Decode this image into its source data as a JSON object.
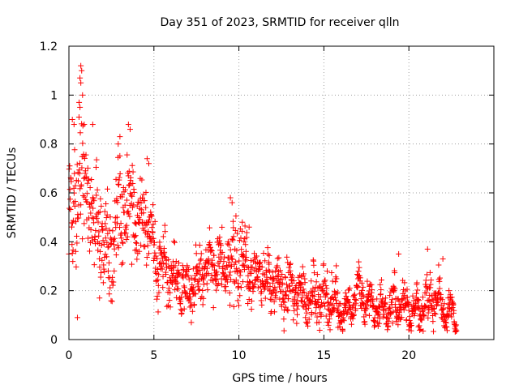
{
  "chart_data": {
    "type": "scatter",
    "title": "Day 351 of 2023, SRMTID for receiver qlln",
    "xlabel": "GPS time / hours",
    "ylabel": "SRMTID / TECUs",
    "xlim": [
      0,
      25
    ],
    "ylim": [
      0,
      1.2
    ],
    "xticks": [
      0,
      5,
      10,
      15,
      20
    ],
    "yticks": [
      0,
      0.2,
      0.4,
      0.6,
      0.8,
      1,
      1.2
    ],
    "xtick_labels": [
      "0",
      "5",
      "10",
      "15",
      "20"
    ],
    "ytick_labels": [
      "0",
      "0.2",
      "0.4",
      "0.6",
      "0.8",
      "1",
      "1.2"
    ],
    "grid": true,
    "marker": "plus",
    "color": "#ff0000",
    "series": [
      {
        "name": "SRMTID",
        "envelope": {
          "x": [
            0,
            0.3,
            0.7,
            1.0,
            1.5,
            2.0,
            2.5,
            3.0,
            3.5,
            4.0,
            4.5,
            5.0,
            5.5,
            6.0,
            6.5,
            7.0,
            7.5,
            8.0,
            8.5,
            9.0,
            9.5,
            10.0,
            10.5,
            11.0,
            11.5,
            12.0,
            13.0,
            14.0,
            15.0,
            15.5,
            16.0,
            16.5,
            17.0,
            17.5,
            18.0,
            18.5,
            19.0,
            19.5,
            20.0,
            20.5,
            21.0,
            21.5,
            22.0,
            22.5,
            22.8
          ],
          "y": [
            0.45,
            0.55,
            0.72,
            0.6,
            0.5,
            0.4,
            0.38,
            0.48,
            0.55,
            0.52,
            0.5,
            0.35,
            0.3,
            0.28,
            0.24,
            0.2,
            0.22,
            0.3,
            0.28,
            0.3,
            0.32,
            0.33,
            0.3,
            0.26,
            0.25,
            0.22,
            0.2,
            0.18,
            0.17,
            0.16,
            0.13,
            0.12,
            0.2,
            0.16,
            0.13,
            0.12,
            0.14,
            0.15,
            0.12,
            0.13,
            0.15,
            0.16,
            0.13,
            0.11,
            0.1
          ],
          "spread": [
            0.18,
            0.2,
            0.22,
            0.18,
            0.16,
            0.14,
            0.15,
            0.16,
            0.17,
            0.16,
            0.15,
            0.12,
            0.1,
            0.09,
            0.08,
            0.08,
            0.08,
            0.09,
            0.09,
            0.1,
            0.12,
            0.12,
            0.1,
            0.09,
            0.09,
            0.08,
            0.08,
            0.08,
            0.08,
            0.07,
            0.06,
            0.05,
            0.06,
            0.06,
            0.05,
            0.05,
            0.06,
            0.06,
            0.05,
            0.06,
            0.07,
            0.07,
            0.05,
            0.05,
            0.04
          ]
        },
        "outliers": [
          {
            "x": 0.7,
            "y": 1.12
          },
          {
            "x": 0.75,
            "y": 1.1
          },
          {
            "x": 0.65,
            "y": 1.07
          },
          {
            "x": 0.7,
            "y": 1.05
          },
          {
            "x": 0.8,
            "y": 1.0
          },
          {
            "x": 0.6,
            "y": 0.97
          },
          {
            "x": 0.65,
            "y": 0.95
          },
          {
            "x": 0.2,
            "y": 0.9
          },
          {
            "x": 0.3,
            "y": 0.88
          },
          {
            "x": 0.9,
            "y": 0.88
          },
          {
            "x": 1.4,
            "y": 0.88
          },
          {
            "x": 3.5,
            "y": 0.88
          },
          {
            "x": 3.6,
            "y": 0.86
          },
          {
            "x": 3.0,
            "y": 0.83
          },
          {
            "x": 2.9,
            "y": 0.8
          },
          {
            "x": 4.6,
            "y": 0.74
          },
          {
            "x": 4.7,
            "y": 0.72
          },
          {
            "x": 0.5,
            "y": 0.09
          },
          {
            "x": 9.5,
            "y": 0.58
          },
          {
            "x": 9.6,
            "y": 0.56
          },
          {
            "x": 10.2,
            "y": 0.48
          },
          {
            "x": 10.6,
            "y": 0.46
          },
          {
            "x": 21.1,
            "y": 0.37
          },
          {
            "x": 19.4,
            "y": 0.35
          },
          {
            "x": 22.0,
            "y": 0.33
          },
          {
            "x": 1.8,
            "y": 0.17
          },
          {
            "x": 7.2,
            "y": 0.07
          },
          {
            "x": 16.1,
            "y": 0.04
          },
          {
            "x": 20.0,
            "y": 0.04
          }
        ]
      }
    ]
  }
}
